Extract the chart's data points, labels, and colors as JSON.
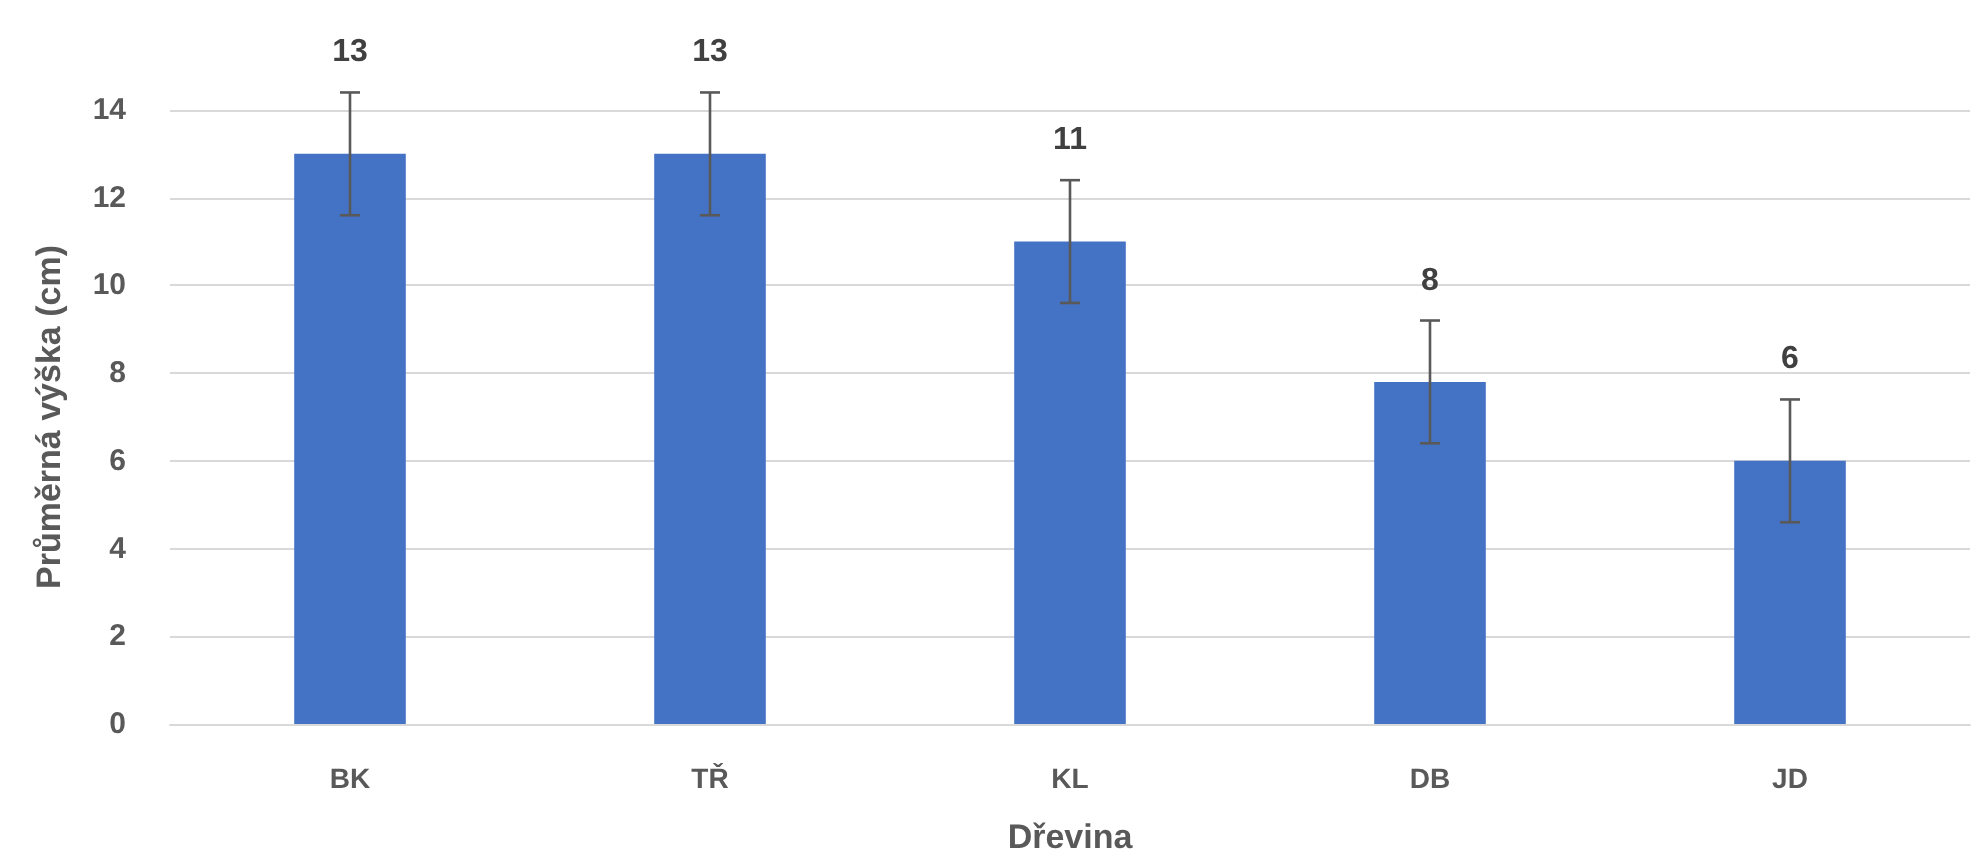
{
  "chart_data": {
    "type": "bar",
    "xlabel": "Dřevina",
    "ylabel": "Průměrná výška (cm)",
    "categories": [
      "BK",
      "TŘ",
      "KL",
      "DB",
      "JD"
    ],
    "values": [
      13,
      13,
      11,
      7.8,
      6
    ],
    "errors": [
      1.4,
      1.4,
      1.4,
      1.4,
      1.4
    ],
    "value_labels": [
      "13",
      "13",
      "11",
      "8",
      "6"
    ],
    "color": "#4472c4",
    "ylim": [
      0,
      14
    ],
    "yticks": [
      0,
      2,
      4,
      6,
      8,
      10,
      12,
      14
    ],
    "grid": "y"
  }
}
